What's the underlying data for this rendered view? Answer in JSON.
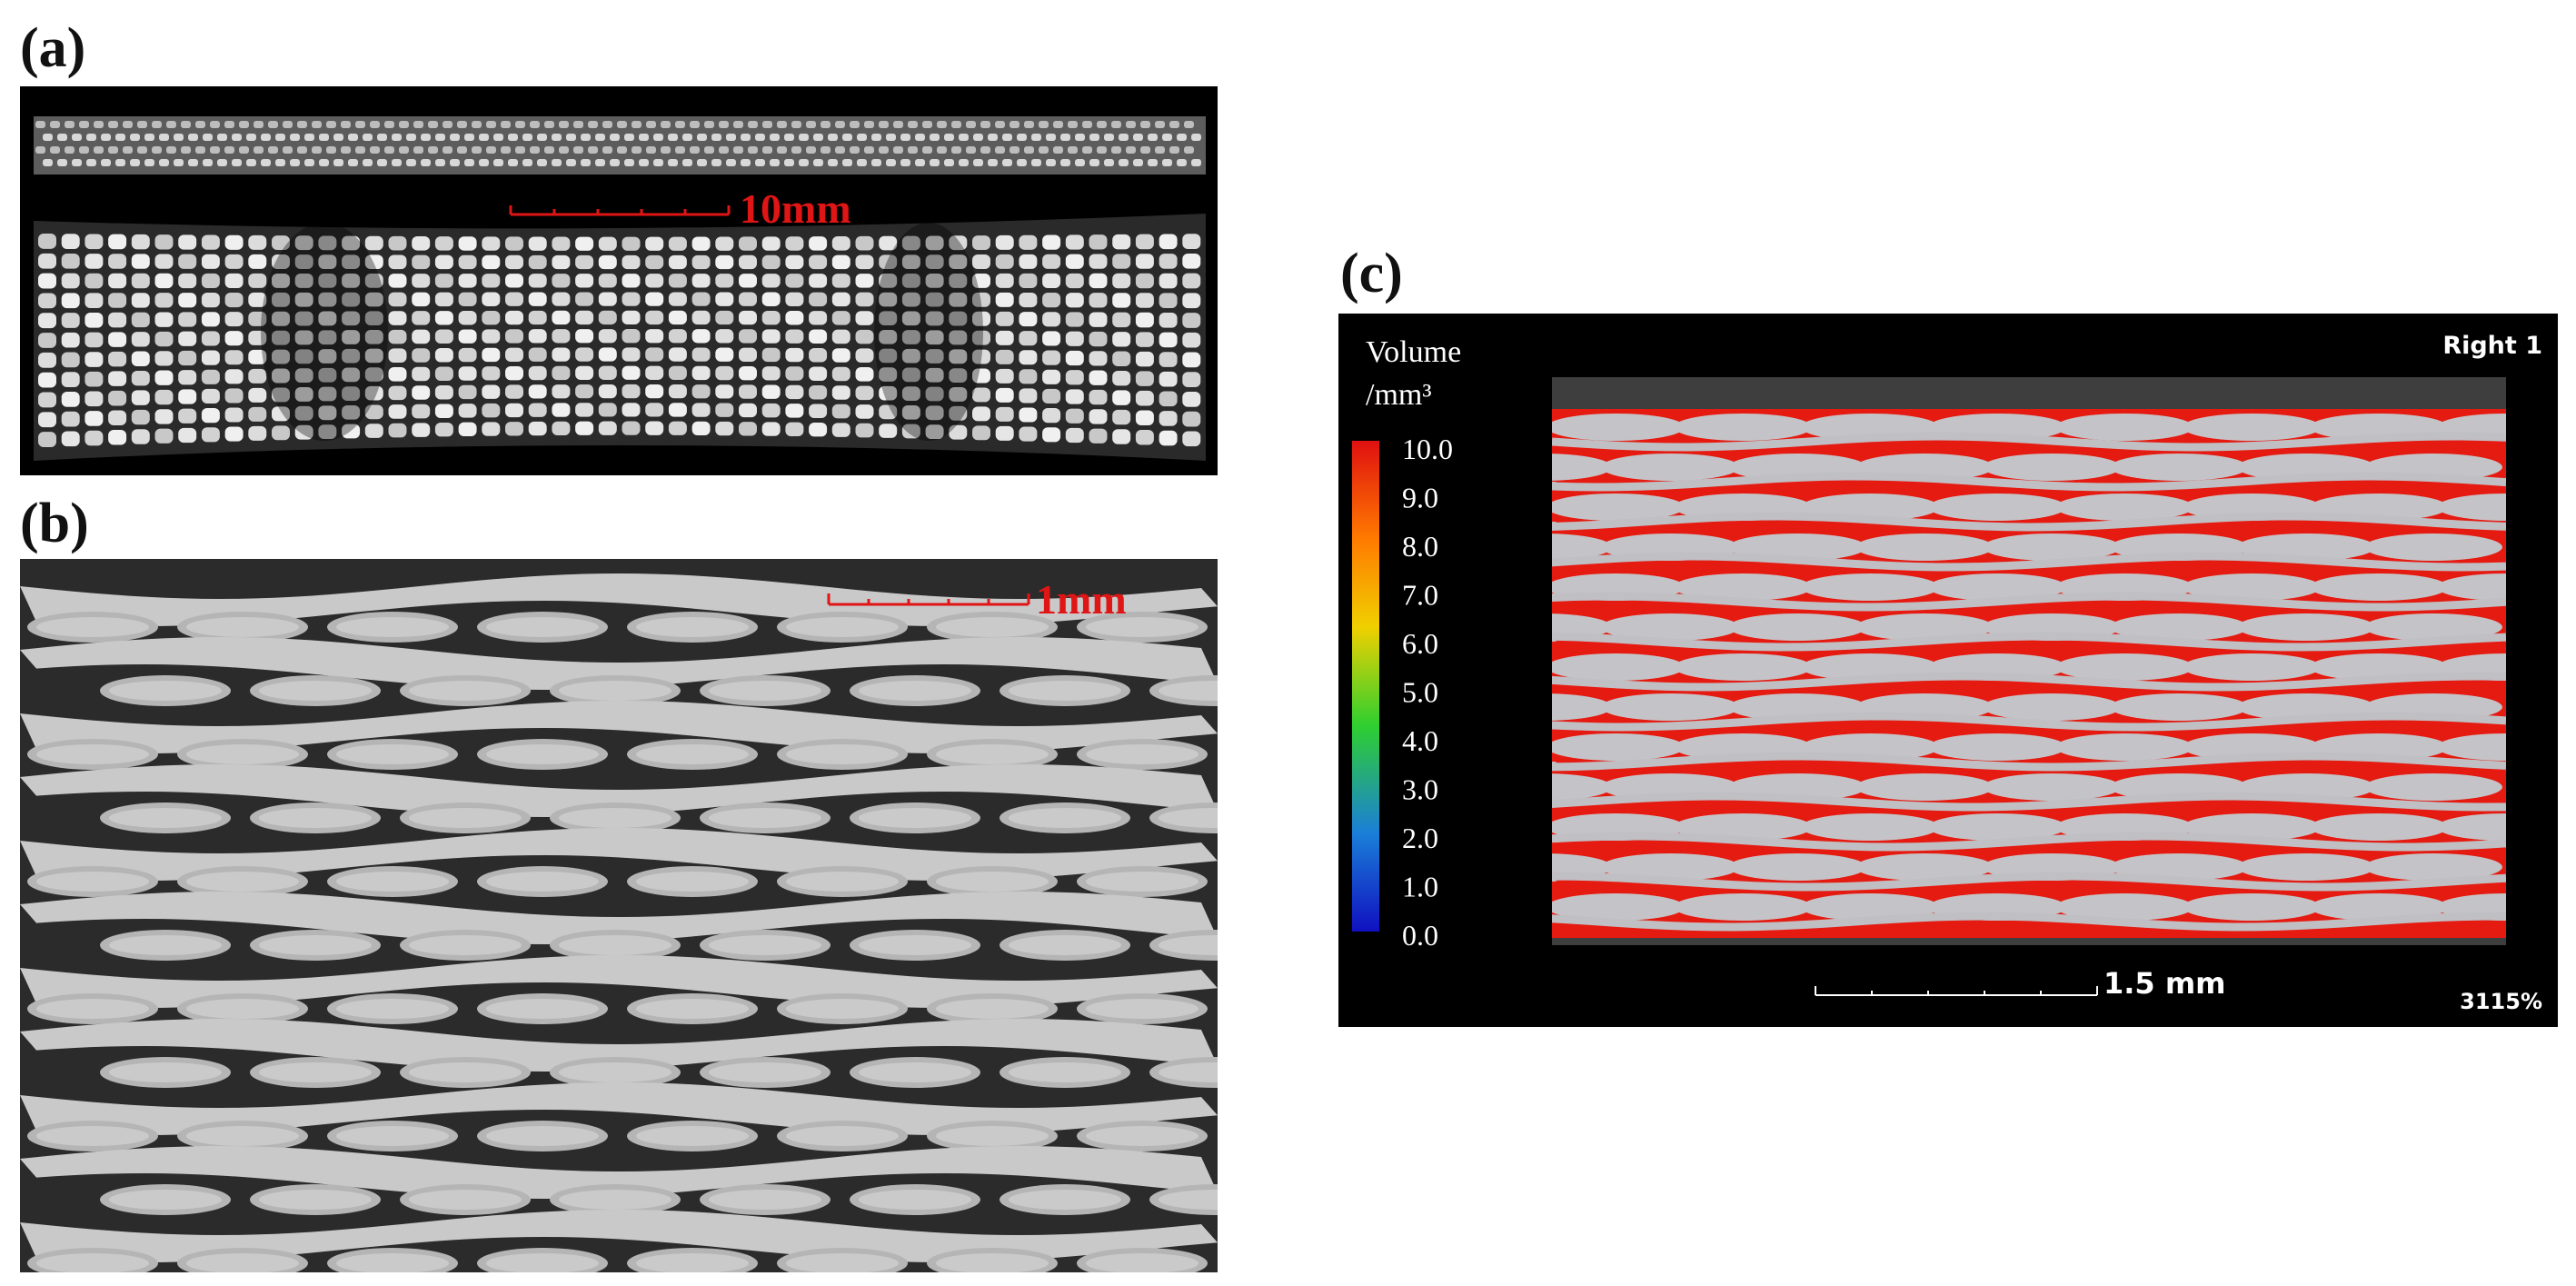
{
  "panels": {
    "a": {
      "label": "(a)",
      "scale_bar": "10mm",
      "scale_color": "#e01515"
    },
    "b": {
      "label": "(b)",
      "scale_bar": "1mm",
      "scale_color": "#e01515"
    },
    "c": {
      "label": "(c)",
      "view_label": "Right 1",
      "zoom": "3115%",
      "scale_bar": "1.5 mm",
      "legend": {
        "title_line1": "Volume",
        "title_line2": "/mm³",
        "ticks": [
          "10.0",
          "9.0",
          "8.0",
          "7.0",
          "6.0",
          "5.0",
          "4.0",
          "3.0",
          "2.0",
          "1.0",
          "0.0"
        ],
        "gradient_colors": [
          "#e01010",
          "#ff7a00",
          "#f0d000",
          "#2fcf2f",
          "#1a7fd8",
          "#1010c0"
        ]
      },
      "void_color": "#e51a10"
    }
  }
}
